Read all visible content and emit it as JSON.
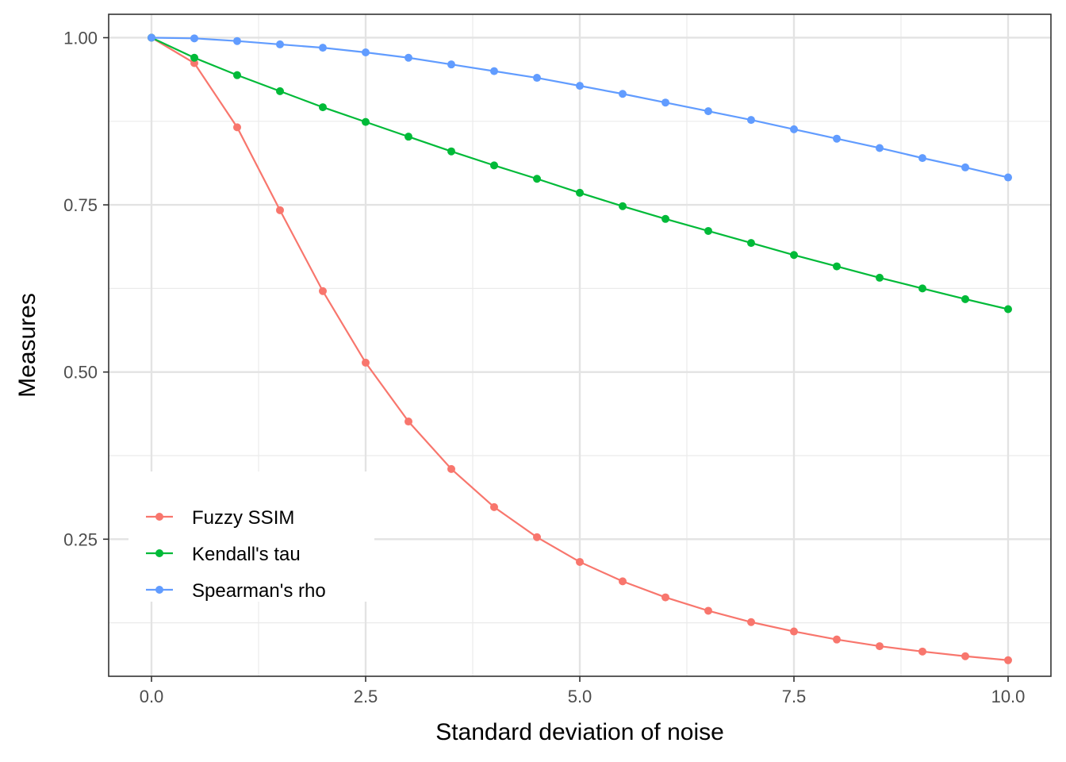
{
  "chart_data": {
    "type": "line",
    "xlabel": "Standard deviation of noise",
    "ylabel": "Measures",
    "xlim": [
      -0.5,
      10.5
    ],
    "ylim": [
      0.045,
      1.035
    ],
    "x_ticks": [
      0,
      2.5,
      5,
      7.5,
      10
    ],
    "x_tick_labels": [
      "0.0",
      "2.5",
      "5.0",
      "7.5",
      "10.0"
    ],
    "y_ticks": [
      0.25,
      0.5,
      0.75,
      1.0
    ],
    "y_tick_labels": [
      "0.25",
      "0.50",
      "0.75",
      "1.00"
    ],
    "x_minor_ticks": [
      1.25,
      3.75,
      6.25,
      8.75
    ],
    "y_minor_ticks": [
      0.125,
      0.375,
      0.625,
      0.875
    ],
    "grid": true,
    "legend_position": "bottom-left",
    "x": [
      0,
      0.5,
      1,
      1.5,
      2,
      2.5,
      3,
      3.5,
      4,
      4.5,
      5,
      5.5,
      6,
      6.5,
      7,
      7.5,
      8,
      8.5,
      9,
      9.5,
      10
    ],
    "series": [
      {
        "name": "Fuzzy SSIM",
        "color": "#F8766D",
        "values": [
          1.0,
          0.962,
          0.866,
          0.742,
          0.621,
          0.514,
          0.426,
          0.355,
          0.298,
          0.253,
          0.216,
          0.187,
          0.163,
          0.143,
          0.126,
          0.112,
          0.1,
          0.09,
          0.082,
          0.075,
          0.069
        ]
      },
      {
        "name": "Kendall's tau",
        "color": "#00BA38",
        "values": [
          1.0,
          0.97,
          0.944,
          0.92,
          0.896,
          0.874,
          0.852,
          0.83,
          0.809,
          0.789,
          0.768,
          0.748,
          0.729,
          0.711,
          0.693,
          0.675,
          0.658,
          0.641,
          0.625,
          0.609,
          0.594
        ]
      },
      {
        "name": "Spearman's rho",
        "color": "#619CFF",
        "values": [
          1.0,
          0.999,
          0.995,
          0.99,
          0.985,
          0.978,
          0.97,
          0.96,
          0.95,
          0.94,
          0.928,
          0.916,
          0.903,
          0.89,
          0.877,
          0.863,
          0.849,
          0.835,
          0.82,
          0.806,
          0.791
        ]
      }
    ]
  }
}
